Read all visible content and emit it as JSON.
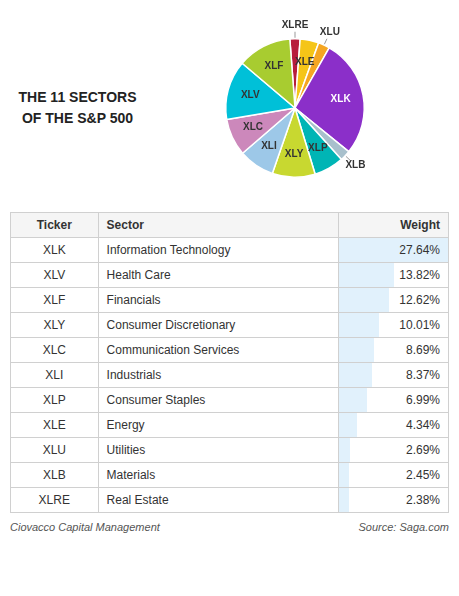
{
  "chart_data": {
    "type": "pie",
    "title": "THE 11 SECTORS",
    "subtitle": "OF THE S&P 500",
    "categories": [
      "XLRE",
      "XLE",
      "XLU",
      "XLK",
      "XLB",
      "XLP",
      "XLY",
      "XLI",
      "XLC",
      "XLV",
      "XLF"
    ],
    "values": [
      2.38,
      4.34,
      2.69,
      27.64,
      2.45,
      6.99,
      10.01,
      8.37,
      8.69,
      13.82,
      12.62
    ],
    "colors": [
      "#B71C3C",
      "#F5C518",
      "#F5A623",
      "#8B2FC9",
      "#A8C0CC",
      "#00B5B5",
      "#C8D830",
      "#9DC8E8",
      "#CC88BB",
      "#00C0D8",
      "#A8CC30"
    ],
    "table": {
      "columns": [
        "Ticker",
        "Sector",
        "Weight"
      ],
      "tickers": [
        "XLK",
        "XLV",
        "XLF",
        "XLY",
        "XLC",
        "XLI",
        "XLP",
        "XLE",
        "XLU",
        "XLB",
        "XLRE"
      ],
      "names": [
        "Information Technology",
        "Health Care",
        "Financials",
        "Consumer Discretionary",
        "Communication Services",
        "Industrials",
        "Consumer Staples",
        "Energy",
        "Utilities",
        "Materials",
        "Real Estate"
      ],
      "values": [
        27.64,
        13.82,
        12.62,
        10.01,
        8.69,
        8.37,
        6.99,
        4.34,
        2.69,
        2.45,
        2.38
      ],
      "value_labels": [
        "27.64%",
        "13.82%",
        "12.62%",
        "10.01%",
        "8.69%",
        "8.37%",
        "6.99%",
        "4.34%",
        "2.69%",
        "2.45%",
        "2.38%"
      ]
    },
    "annotations": [
      "Ciovacco Capital Management",
      "Source:  Saga.com"
    ]
  }
}
